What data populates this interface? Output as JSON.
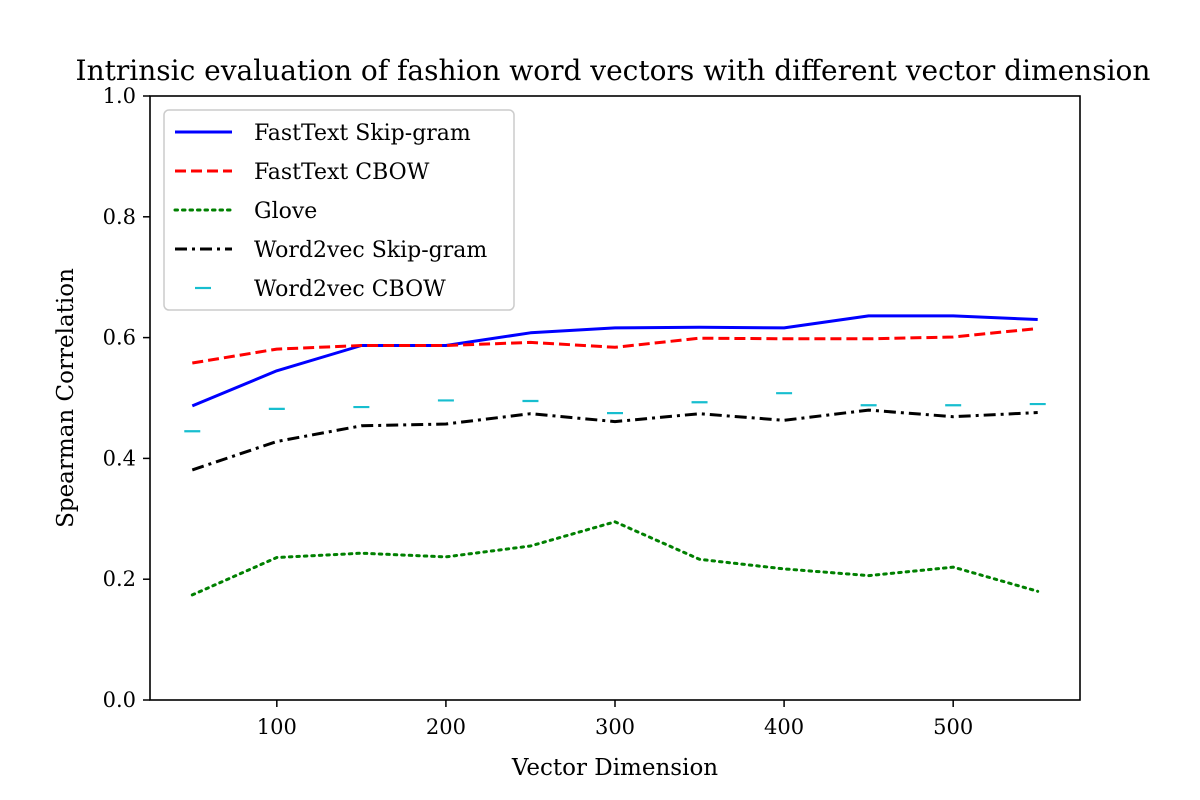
{
  "chart_data": {
    "type": "line",
    "title": "Intrinsic evaluation of fashion word vectors with different vector dimension",
    "xlabel": "Vector Dimension",
    "ylabel": "Spearman Correlation",
    "xlim": [
      25,
      575
    ],
    "ylim": [
      0.0,
      1.0
    ],
    "xticks": [
      "100",
      "200",
      "300",
      "400",
      "500"
    ],
    "xtick_values": [
      100,
      200,
      300,
      400,
      500
    ],
    "yticks": [
      "0.0",
      "0.2",
      "0.4",
      "0.6",
      "0.8",
      "1.0"
    ],
    "ytick_values": [
      0.0,
      0.2,
      0.4,
      0.6,
      0.8,
      1.0
    ],
    "grid": false,
    "legend_position": "upper-left",
    "x": [
      50,
      100,
      150,
      200,
      250,
      300,
      350,
      400,
      450,
      500,
      550
    ],
    "series": [
      {
        "name": "FastText Skip-gram",
        "color": "#0000ff",
        "style": "solid",
        "values": [
          0.487,
          0.545,
          0.587,
          0.587,
          0.608,
          0.616,
          0.617,
          0.616,
          0.636,
          0.636,
          0.63
        ]
      },
      {
        "name": "FastText CBOW",
        "color": "#ff0000",
        "style": "dashed",
        "values": [
          0.558,
          0.581,
          0.587,
          0.587,
          0.592,
          0.584,
          0.599,
          0.598,
          0.598,
          0.601,
          0.615
        ]
      },
      {
        "name": "Glove",
        "color": "#008000",
        "style": "dotted",
        "values": [
          0.174,
          0.236,
          0.243,
          0.237,
          0.255,
          0.295,
          0.233,
          0.217,
          0.206,
          0.22,
          0.18
        ]
      },
      {
        "name": "Word2vec Skip-gram",
        "color": "#000000",
        "style": "dashdot",
        "values": [
          0.381,
          0.428,
          0.454,
          0.457,
          0.474,
          0.461,
          0.474,
          0.463,
          0.48,
          0.469,
          0.476
        ]
      },
      {
        "name": "Word2vec CBOW",
        "color": "#17becf",
        "style": "marker-hline",
        "values": [
          0.445,
          0.482,
          0.485,
          0.496,
          0.495,
          0.475,
          0.493,
          0.508,
          0.488,
          0.488,
          0.49
        ]
      }
    ]
  }
}
